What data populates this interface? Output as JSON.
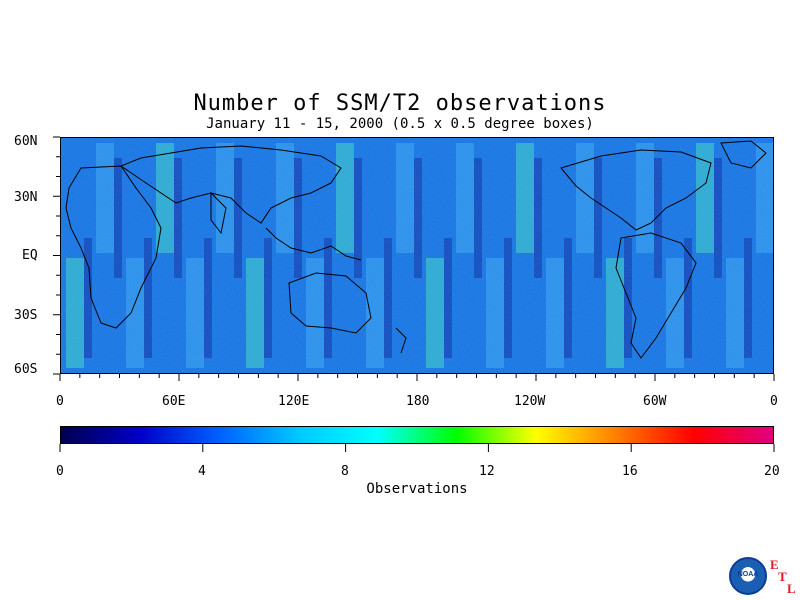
{
  "title": "Number of SSM/T2 observations",
  "subtitle": "January 11 - 15, 2000 (0.5 x 0.5 degree boxes)",
  "map": {
    "lat_labels": [
      "60N",
      "30N",
      "EQ",
      "30S",
      "60S"
    ],
    "lon_labels": [
      "0",
      "60E",
      "120E",
      "180",
      "120W",
      "60W",
      "0"
    ]
  },
  "colorbar": {
    "ticks": [
      "0",
      "4",
      "8",
      "12",
      "16",
      "20"
    ],
    "label": "Observations",
    "colors": [
      "#000050",
      "#0000c8",
      "#0060ff",
      "#00c8ff",
      "#00ffff",
      "#00ff00",
      "#ffff00",
      "#ff8000",
      "#ff0000",
      "#e00080"
    ]
  },
  "logo": {
    "icon": "noaa-logo-icon",
    "text": "NOAA",
    "etl": [
      "E",
      "T",
      "L"
    ]
  }
}
